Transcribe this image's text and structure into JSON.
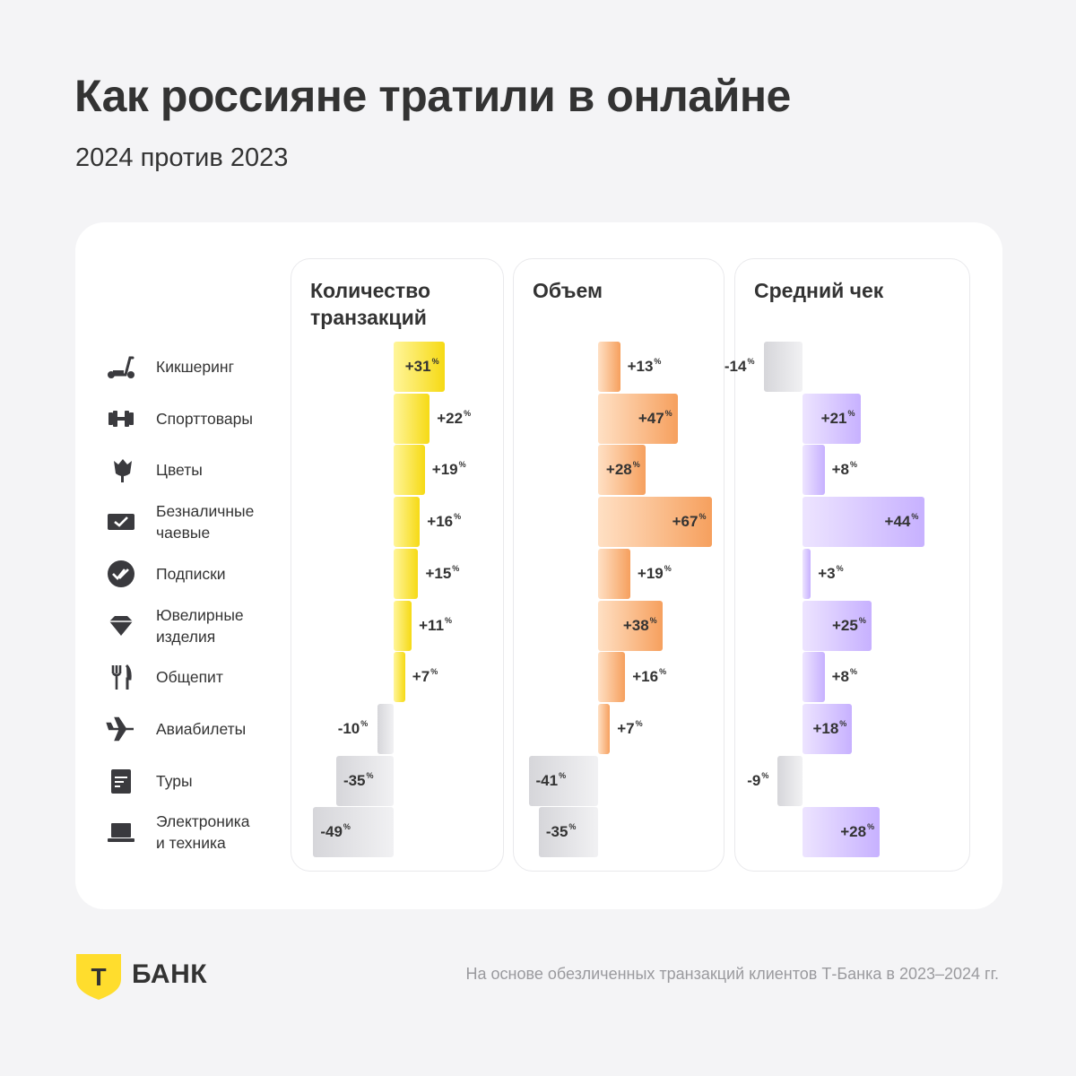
{
  "title": "Как россияне тратили в онлайне",
  "subtitle": "2024 против 2023",
  "categories": [
    {
      "label": "Кикшеринг",
      "icon": "scooter-icon"
    },
    {
      "label": "Спорттовары",
      "icon": "dumbbell-icon"
    },
    {
      "label": "Цветы",
      "icon": "flower-icon"
    },
    {
      "label": "Безналичные\nчаевые",
      "icon": "tip-card-icon"
    },
    {
      "label": "Подписки",
      "icon": "subscription-check-icon"
    },
    {
      "label": "Ювелирные\nизделия",
      "icon": "diamond-icon"
    },
    {
      "label": "Общепит",
      "icon": "fork-knife-icon"
    },
    {
      "label": "Авиабилеты",
      "icon": "airplane-icon"
    },
    {
      "label": "Туры",
      "icon": "tour-ticket-icon"
    },
    {
      "label": "Электроника\nи техника",
      "icon": "laptop-icon"
    }
  ],
  "chart_data": [
    {
      "type": "bar",
      "title": "Количество транзакций",
      "unit": "%",
      "values": [
        31,
        22,
        19,
        16,
        15,
        11,
        7,
        -10,
        -35,
        -49
      ],
      "color_positive": [
        "#fff59a",
        "#f6da14"
      ],
      "color_negative": [
        "#f1f1f3",
        "#d6d6da"
      ]
    },
    {
      "type": "bar",
      "title": "Объем",
      "unit": "%",
      "values": [
        13,
        47,
        28,
        67,
        19,
        38,
        16,
        7,
        -41,
        -35
      ],
      "color_positive": [
        "#ffe0c4",
        "#f6a05e"
      ],
      "color_negative": [
        "#f1f1f3",
        "#d6d6da"
      ]
    },
    {
      "type": "bar",
      "title": "Средний чек",
      "unit": "%",
      "values": [
        -14,
        21,
        8,
        44,
        3,
        25,
        8,
        18,
        -9,
        28
      ],
      "color_positive": [
        "#ede4ff",
        "#c7b1ff"
      ],
      "color_negative": [
        "#f1f1f3",
        "#d6d6da"
      ]
    }
  ],
  "footer": {
    "brand": "БАНК",
    "logo_letter": "Т",
    "note": "На основе обезличенных транзакций клиентов Т-Банка в 2023–2024 гг."
  }
}
